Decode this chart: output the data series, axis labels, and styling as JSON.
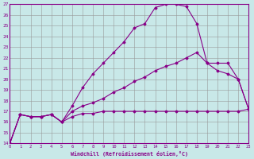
{
  "xlabel": "Windchill (Refroidissement éolien,°C)",
  "bg_color": "#c8e8e8",
  "grid_color": "#b0c8c8",
  "line_color": "#880088",
  "xmin": 0,
  "xmax": 23,
  "ymin": 14,
  "ymax": 27,
  "series1_x": [
    0,
    1,
    2,
    3,
    4,
    5,
    6,
    7,
    8,
    9,
    10,
    11,
    12,
    13,
    14,
    15,
    16,
    17,
    18,
    19,
    20,
    21,
    22,
    23
  ],
  "series1_y": [
    14.0,
    16.7,
    16.5,
    16.5,
    16.7,
    16.0,
    16.5,
    16.8,
    16.8,
    17.0,
    17.0,
    17.0,
    17.0,
    17.0,
    17.0,
    17.0,
    17.0,
    17.0,
    17.0,
    17.0,
    17.0,
    17.0,
    17.0,
    17.2
  ],
  "series2_x": [
    0,
    1,
    2,
    3,
    4,
    5,
    6,
    7,
    8,
    9,
    10,
    11,
    12,
    13,
    14,
    15,
    16,
    17,
    18,
    19,
    20,
    21,
    22,
    23
  ],
  "series2_y": [
    14.0,
    16.7,
    16.5,
    16.5,
    16.7,
    16.0,
    17.5,
    19.2,
    20.5,
    21.5,
    22.5,
    23.5,
    24.8,
    25.2,
    26.7,
    27.0,
    27.0,
    26.8,
    25.2,
    21.5,
    21.5,
    21.5,
    20.0,
    17.2
  ],
  "series3_x": [
    0,
    1,
    2,
    3,
    4,
    5,
    6,
    7,
    8,
    9,
    10,
    11,
    12,
    13,
    14,
    15,
    16,
    17,
    18,
    19,
    20,
    21,
    22,
    23
  ],
  "series3_y": [
    14.0,
    16.7,
    16.5,
    16.5,
    16.7,
    16.0,
    17.0,
    17.5,
    17.8,
    18.2,
    18.8,
    19.2,
    19.8,
    20.2,
    20.8,
    21.2,
    21.5,
    22.0,
    22.5,
    21.5,
    20.8,
    20.5,
    20.0,
    17.2
  ]
}
